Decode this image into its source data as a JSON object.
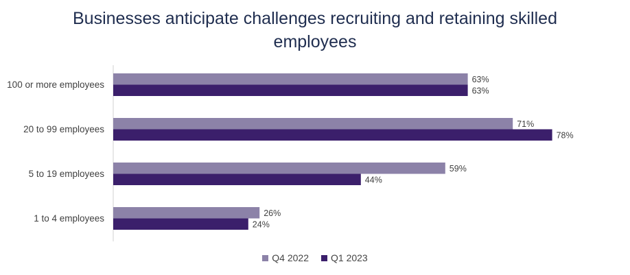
{
  "chart_data": {
    "type": "bar",
    "orientation": "horizontal",
    "title": "Businesses anticipate challenges recruiting and retaining skilled employees",
    "categories": [
      "100 or more employees",
      "20 to 99 employees",
      "5 to 19 employees",
      "1 to 4 employees"
    ],
    "series": [
      {
        "name": "Q4 2022",
        "values": [
          63,
          71,
          59,
          26
        ],
        "color": "#8c82a8"
      },
      {
        "name": "Q1 2023",
        "values": [
          63,
          78,
          44,
          24
        ],
        "color": "#3b1f6b"
      }
    ],
    "value_suffix": "%",
    "xlim": [
      0,
      100
    ],
    "grid": false,
    "legend_position": "bottom"
  }
}
